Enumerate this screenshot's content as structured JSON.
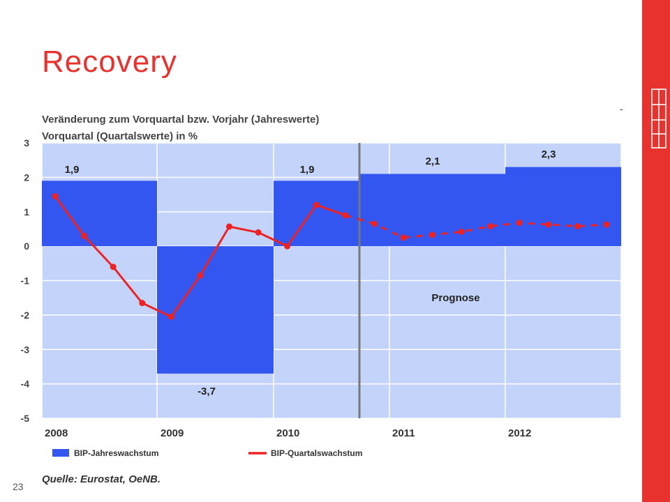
{
  "slide": {
    "title": "Recovery",
    "page_number": "23",
    "dash": "-"
  },
  "colors": {
    "accent_red": "#e8322e",
    "bar_blue": "#3355f0",
    "plot_bg": "#c3d3fa",
    "line_red": "#ee2222"
  },
  "chart_data": {
    "type": "bar",
    "title_line1": "Veränderung zum Vorquartal bzw. Vorjahr (Jahreswerte)",
    "title_line2": "Vorquartal (Quartalswerte) in %",
    "ylim": [
      -5,
      3
    ],
    "y_ticks": [
      "3",
      "2",
      "1",
      "0",
      "-1",
      "-2",
      "-3",
      "-4",
      "-5"
    ],
    "x_ticks": [
      "2008",
      "2009",
      "2010",
      "2011",
      "2012"
    ],
    "annual": {
      "name": "BIP-Jahreswachstum",
      "categories": [
        "2008",
        "2009",
        "2010",
        "2011",
        "2012"
      ],
      "values": [
        1.9,
        -3.7,
        1.9,
        2.1,
        2.3
      ],
      "labels": [
        "1,9",
        "-3,7",
        "1,9",
        "2,1",
        "2,3"
      ]
    },
    "quarterly": {
      "name": "BIP-Quartalswachstum",
      "actual": [
        1.45,
        0.3,
        -0.6,
        -1.65,
        -2.05,
        -0.85,
        0.57,
        0.4,
        0.0,
        1.2,
        0.9
      ],
      "forecast": [
        0.65,
        0.25,
        0.33,
        0.42,
        0.58,
        0.68,
        0.63,
        0.58,
        0.63
      ]
    },
    "forecast_label": "Prognose",
    "legend_position": "bottom",
    "source": "Quelle: Eurostat, OeNB."
  }
}
